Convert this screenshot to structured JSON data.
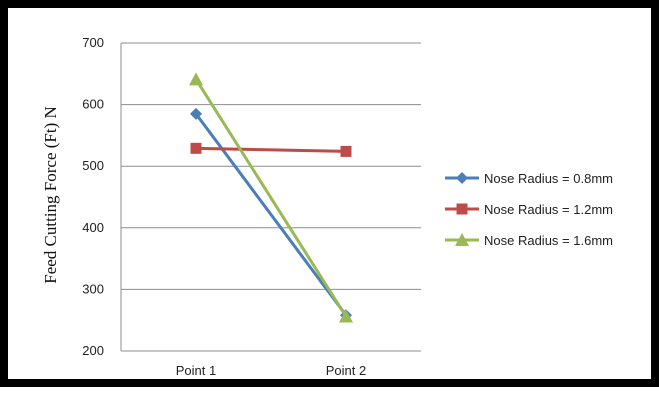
{
  "chart_data": {
    "type": "line",
    "title": "",
    "xlabel": "",
    "ylabel": "Feed Cutting Force (Ft) N",
    "categories": [
      "Point 1",
      "Point 2"
    ],
    "ylim": [
      200,
      700
    ],
    "yticks": [
      200,
      300,
      400,
      500,
      600,
      700
    ],
    "grid": true,
    "legend_position": "right",
    "series": [
      {
        "name": "Nose Radius = 0.8mm",
        "values": [
          585,
          258
        ],
        "color": "#4a7ebb",
        "marker": "diamond"
      },
      {
        "name": "Nose Radius = 1.2mm",
        "values": [
          529,
          524
        ],
        "color": "#be4b48",
        "marker": "square"
      },
      {
        "name": "Nose Radius = 1.6mm",
        "values": [
          641,
          256
        ],
        "color": "#98b954",
        "marker": "triangle"
      }
    ]
  }
}
